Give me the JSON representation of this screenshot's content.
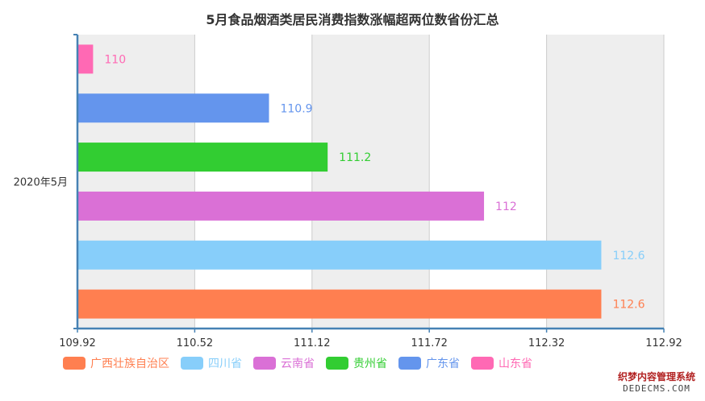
{
  "chart_data": {
    "type": "bar",
    "orientation": "horizontal",
    "title": "5月食品烟酒类居民消费指数涨幅超两位数省份汇总",
    "categories": [
      "2020年5月"
    ],
    "xlim": [
      109.92,
      112.92
    ],
    "x_ticks": [
      "109.92",
      "110.52",
      "111.12",
      "111.72",
      "112.32",
      "112.92"
    ],
    "grid": true,
    "legend_position": "bottom-left",
    "series": [
      {
        "name": "广西壮族自治区",
        "values": [
          112.6
        ],
        "label": "112.6",
        "color": "#ff7f50"
      },
      {
        "name": "四川省",
        "values": [
          112.6
        ],
        "label": "112.6",
        "color": "#87cefa"
      },
      {
        "name": "云南省",
        "values": [
          112
        ],
        "label": "112",
        "color": "#da70d6"
      },
      {
        "name": "贵州省",
        "values": [
          111.2
        ],
        "label": "111.2",
        "color": "#32cd32"
      },
      {
        "name": "广东省",
        "values": [
          110.9
        ],
        "label": "110.9",
        "color": "#6495ed"
      },
      {
        "name": "山东省",
        "values": [
          110
        ],
        "label": "110",
        "color": "#ff69b4"
      }
    ]
  },
  "watermark": {
    "line1": "织梦内容管理系统",
    "line2": "DEDECMS.COM"
  }
}
